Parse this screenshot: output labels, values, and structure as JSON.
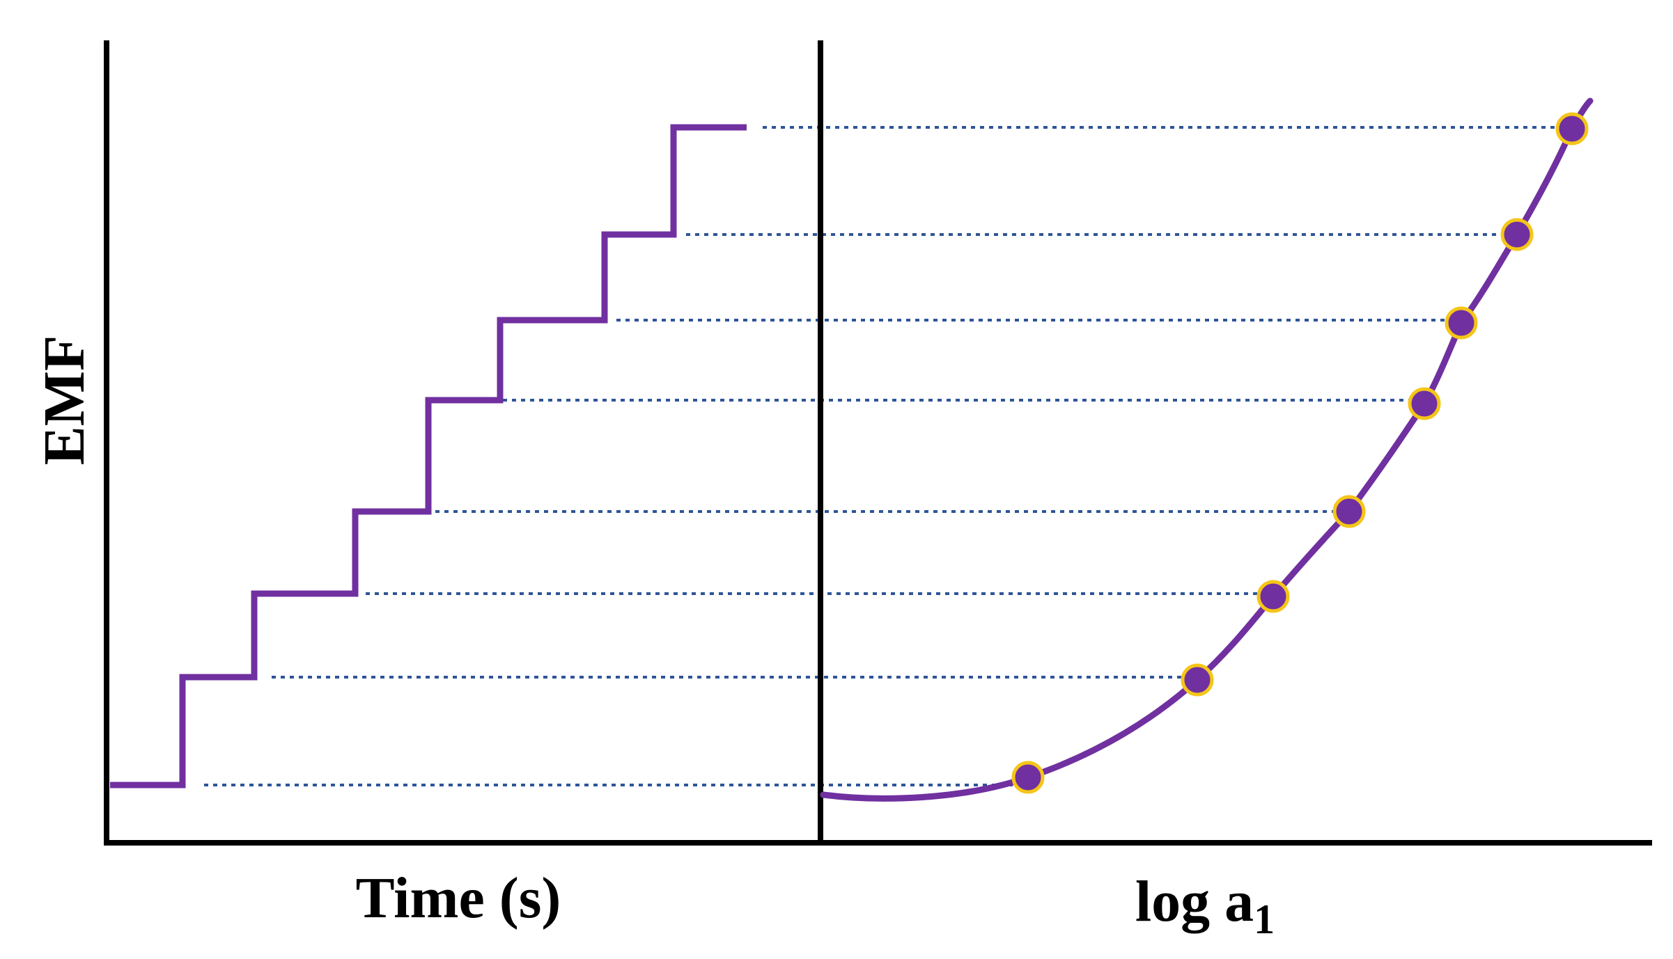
{
  "figure": {
    "y_axis_label": "EMF",
    "left_x_axis_label": "Time (s)",
    "right_x_axis_label_main": "log a",
    "right_x_axis_label_subscript": "1"
  },
  "colors": {
    "curve": "#7030A0",
    "marker_fill": "#7030A0",
    "marker_stroke": "#F5C518",
    "guide_line": "#2E5597",
    "axis": "#000000"
  },
  "chart_data": {
    "type": "line",
    "steps": 8,
    "description_series": [
      {
        "name": "",
        "kind": "staircase",
        "levels": [
          1,
          2,
          3,
          4,
          5,
          6,
          7,
          8
        ]
      },
      {
        "name": "",
        "kind": "calibration-curve",
        "points": [
          1,
          2,
          3,
          4,
          5,
          6,
          7,
          8
        ]
      }
    ]
  }
}
